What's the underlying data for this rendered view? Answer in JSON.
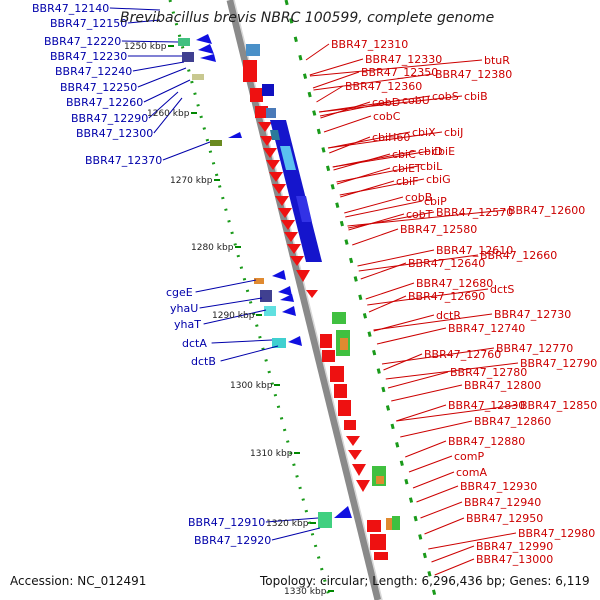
{
  "title": "Brevibacillus brevis NBRC 100599, complete genome",
  "footer": {
    "accession": "Accession: NC_012491",
    "topology": "Topology: circular; Length: 6,296,436 bp; Genes: 6,119"
  },
  "colors": {
    "forward": "#0000dd",
    "reverse": "#ee0000",
    "backbone": "#909090",
    "ticks": "#008800",
    "left_label": "#0000aa",
    "right_label": "#cc0000"
  },
  "kbp_ticks": [
    "1250 kbp",
    "1260 kbp",
    "1270 kbp",
    "1280 kbp",
    "1290 kbp",
    "1300 kbp",
    "1310 kbp",
    "1320 kbp",
    "1330 kbp"
  ],
  "left_labels": [
    "BBR47_12140",
    "BBR47_12150",
    "BBR47_12220",
    "BBR47_12230",
    "BBR47_12240",
    "BBR47_12250",
    "BBR47_12260",
    "BBR47_12290",
    "BBR47_12300",
    "BBR47_12370",
    "cgeE",
    "yhaU",
    "yhaT",
    "dctA",
    "dctB",
    "BBR47_12910",
    "BBR47_12920"
  ],
  "right_labels": [
    "BBR47_12310",
    "BBR47_12330",
    "btuR",
    "BBR47_12350",
    "BBR47_12380",
    "BBR47_12360",
    "cobS",
    "cobD",
    "cobU",
    "cbiB",
    "cobC",
    "cbiH60",
    "cbiX",
    "cbiJ",
    "cbiD",
    "cbiC",
    "cbiE",
    "cbiET",
    "cbiL",
    "cbiF",
    "cbiG",
    "cobB",
    "cbiP",
    "cobT",
    "BBR47_12570",
    "BBR47_12600",
    "BBR47_12580",
    "BBR47_12610",
    "BBR47_12660",
    "BBR47_12640",
    "BBR47_12680",
    "dctS",
    "BBR47_12690",
    "dctR",
    "BBR47_12730",
    "BBR47_12740",
    "BBR47_12770",
    "BBR47_12760",
    "BBR47_12790",
    "BBR47_12780",
    "BBR47_12800",
    "BBR47_12830",
    "BBR47_12850",
    "BBR47_12860",
    "BBR47_12880",
    "comP",
    "comA",
    "BBR47_12930",
    "BBR47_12940",
    "BBR47_12950",
    "BBR47_12980",
    "BBR47_12990",
    "BBR47_13000"
  ]
}
